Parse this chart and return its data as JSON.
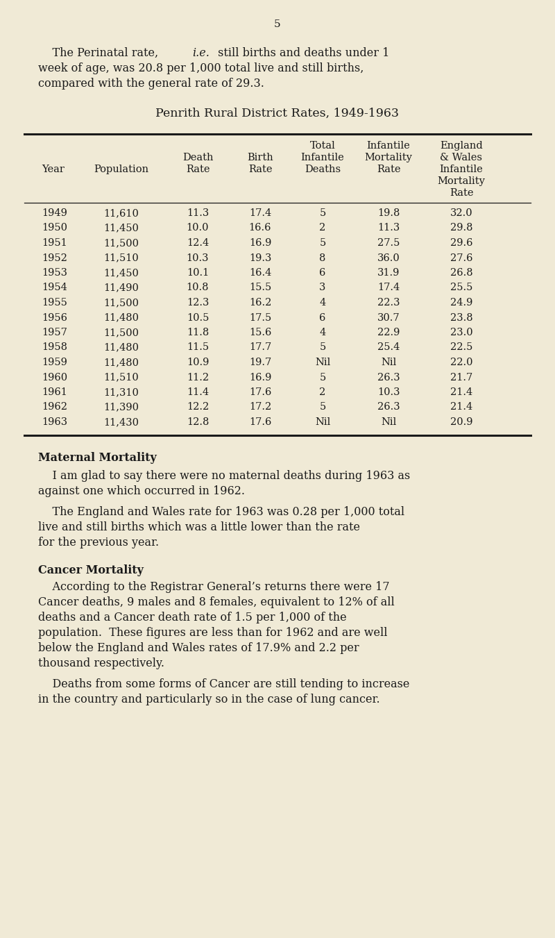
{
  "page_number": "5",
  "bg_color": "#f0ead6",
  "text_color": "#1a1a1a",
  "table_title": "Penrith Rural District Rates, 1949-1963",
  "table_data": [
    [
      "1949",
      "11,610",
      "11.3",
      "17.4",
      "5",
      "19.8",
      "32.0"
    ],
    [
      "1950",
      "11,450",
      "10.0",
      "16.6",
      "2",
      "11.3",
      "29.8"
    ],
    [
      "1951",
      "11,500",
      "12.4",
      "16.9",
      "5",
      "27.5",
      "29.6"
    ],
    [
      "1952",
      "11,510",
      "10.3",
      "19.3",
      "8",
      "36.0",
      "27.6"
    ],
    [
      "1953",
      "11,450",
      "10.1",
      "16.4",
      "6",
      "31.9",
      "26.8"
    ],
    [
      "1954",
      "11,490",
      "10.8",
      "15.5",
      "3",
      "17.4",
      "25.5"
    ],
    [
      "1955",
      "11,500",
      "12.3",
      "16.2",
      "4",
      "22.3",
      "24.9"
    ],
    [
      "1956",
      "11,480",
      "10.5",
      "17.5",
      "6",
      "30.7",
      "23.8"
    ],
    [
      "1957",
      "11,500",
      "11.8",
      "15.6",
      "4",
      "22.9",
      "23.0"
    ],
    [
      "1958",
      "11,480",
      "11.5",
      "17.7",
      "5",
      "25.4",
      "22.5"
    ],
    [
      "1959",
      "11,480",
      "10.9",
      "19.7",
      "Nil",
      "Nil",
      "22.0"
    ],
    [
      "1960",
      "11,510",
      "11.2",
      "16.9",
      "5",
      "26.3",
      "21.7"
    ],
    [
      "1961",
      "11,310",
      "11.4",
      "17.6",
      "2",
      "10.3",
      "21.4"
    ],
    [
      "1962",
      "11,390",
      "12.2",
      "17.2",
      "5",
      "26.3",
      "21.4"
    ],
    [
      "1963",
      "11,430",
      "12.8",
      "17.6",
      "Nil",
      "Nil",
      "20.9"
    ]
  ],
  "section1_title": "Maternal Mortality",
  "section1_para1": "    I am glad to say there were no maternal deaths during 1963 as against one which occurred in 1962.",
  "section1_para2": "    The England and Wales rate for 1963 was 0.28 per 1,000 total live and still births which was a little lower than the rate for the previous year.",
  "section2_title": "Cancer Mortality",
  "section2_para1": "    According to the Registrar General’s returns there were 17 Cancer deaths, 9 males and 8 females, equivalent to 12% of all deaths and a Cancer death rate of 1.5 per 1,000 of the population.  These figures are less than for 1962 and are well below the England and Wales rates of 17.9% and 2.2 per thousand respectively.",
  "section2_para2": "    Deaths from some forms of Cancer are still tending to increase in the country and particularly so in the case of lung cancer.",
  "font_family": "serif",
  "body_fontsize": 11.5,
  "header_fontsize": 10.5,
  "row_fontsize": 10.5
}
